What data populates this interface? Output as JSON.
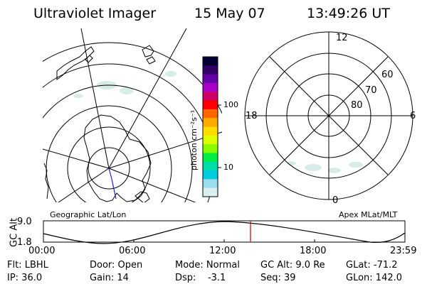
{
  "header": {
    "title": "Ultraviolet Imager",
    "date": "15 May 07",
    "time": "13:49:26 UT"
  },
  "colorbar": {
    "unit_label": "photon cm⁻²s⁻¹",
    "tick_labels": [
      "100",
      "10"
    ],
    "colors": [
      "#000033",
      "#330066",
      "#6600aa",
      "#aa00cc",
      "#cc0066",
      "#ff0000",
      "#ff6600",
      "#ffaa00",
      "#ffdd00",
      "#ddff00",
      "#88ff00",
      "#00ee44",
      "#00ddaa",
      "#00ccdd",
      "#99ddee",
      "#ddeeee"
    ]
  },
  "maps": {
    "left_label": "Geographic Lat/Lon",
    "right_label": "Apex MLat/MLT",
    "right_mlt_labels": [
      "12",
      "18",
      "6",
      "0"
    ],
    "right_lat_labels": [
      "60",
      "70",
      "80"
    ]
  },
  "altitude_plot": {
    "y_label": "GC Alt",
    "y_ticks": [
      "9.0",
      "1.8"
    ],
    "x_ticks": [
      "00:00",
      "06:00",
      "12:00",
      "18:00",
      "23:59"
    ],
    "current_time_color": "#cc0000"
  },
  "info": {
    "row1": [
      "Flt: LBHL",
      "Door: Open",
      "Mode: Normal",
      "GC Alt: 9.0 Re",
      "GLat: -71.2"
    ],
    "row2": [
      "IP: 36.0",
      "Gain: 14",
      "Dsp:    -3.1",
      "Seq: 39",
      "GLon: 142.0"
    ]
  }
}
